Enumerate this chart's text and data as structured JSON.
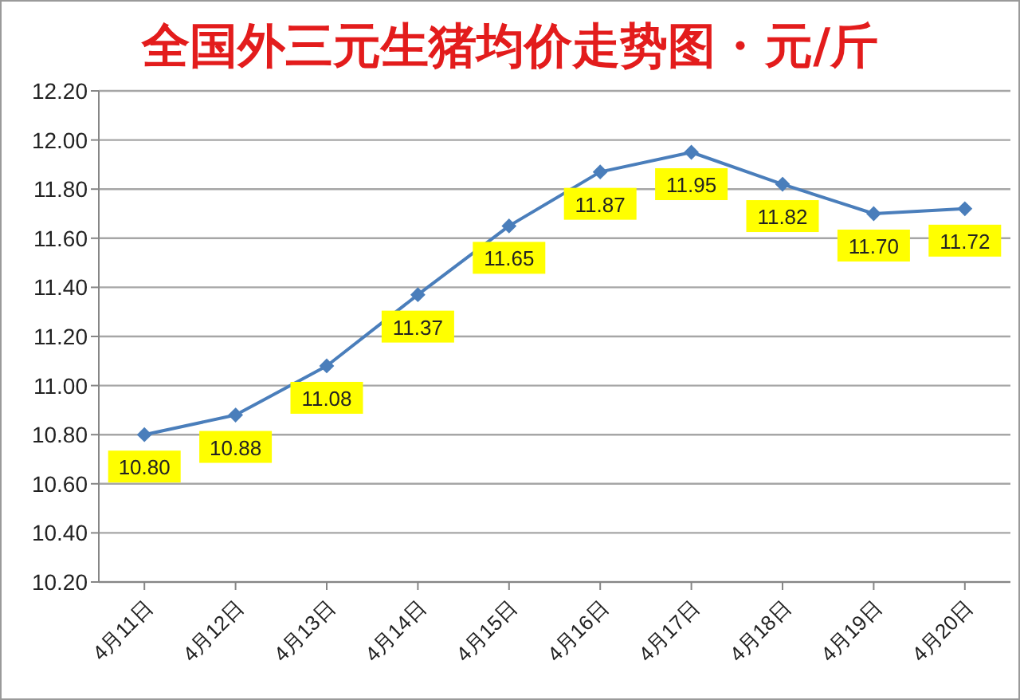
{
  "chart_data": {
    "type": "line",
    "title": "全国外三元生猪均价走势图 · 元/斤",
    "categories": [
      "4月11日",
      "4月12日",
      "4月13日",
      "4月14日",
      "4月15日",
      "4月16日",
      "4月17日",
      "4月18日",
      "4月19日",
      "4月20日"
    ],
    "series": [
      {
        "color": "#4a7ebb",
        "values": [
          10.8,
          10.88,
          11.08,
          11.37,
          11.65,
          11.87,
          11.95,
          11.82,
          11.7,
          11.72
        ],
        "value_labels": [
          "10.80",
          "10.88",
          "11.08",
          "11.37",
          "11.65",
          "11.87",
          "11.95",
          "11.82",
          "11.70",
          "11.72"
        ]
      }
    ],
    "ylim": [
      10.2,
      12.2
    ],
    "yticks": [
      {
        "value": 10.2,
        "label": "10.20"
      },
      {
        "value": 10.4,
        "label": "10.40"
      },
      {
        "value": 10.6,
        "label": "10.60"
      },
      {
        "value": 10.8,
        "label": "10.80"
      },
      {
        "value": 11,
        "label": "11.00"
      },
      {
        "value": 11.2,
        "label": "11.20"
      },
      {
        "value": 11.4,
        "label": "11.40"
      },
      {
        "value": 11.6,
        "label": "11.60"
      },
      {
        "value": 11.8,
        "label": "11.80"
      },
      {
        "value": 12,
        "label": "12.00"
      },
      {
        "value": 12.2,
        "label": "12.20"
      }
    ],
    "grid": "y",
    "marker": "diamond"
  }
}
